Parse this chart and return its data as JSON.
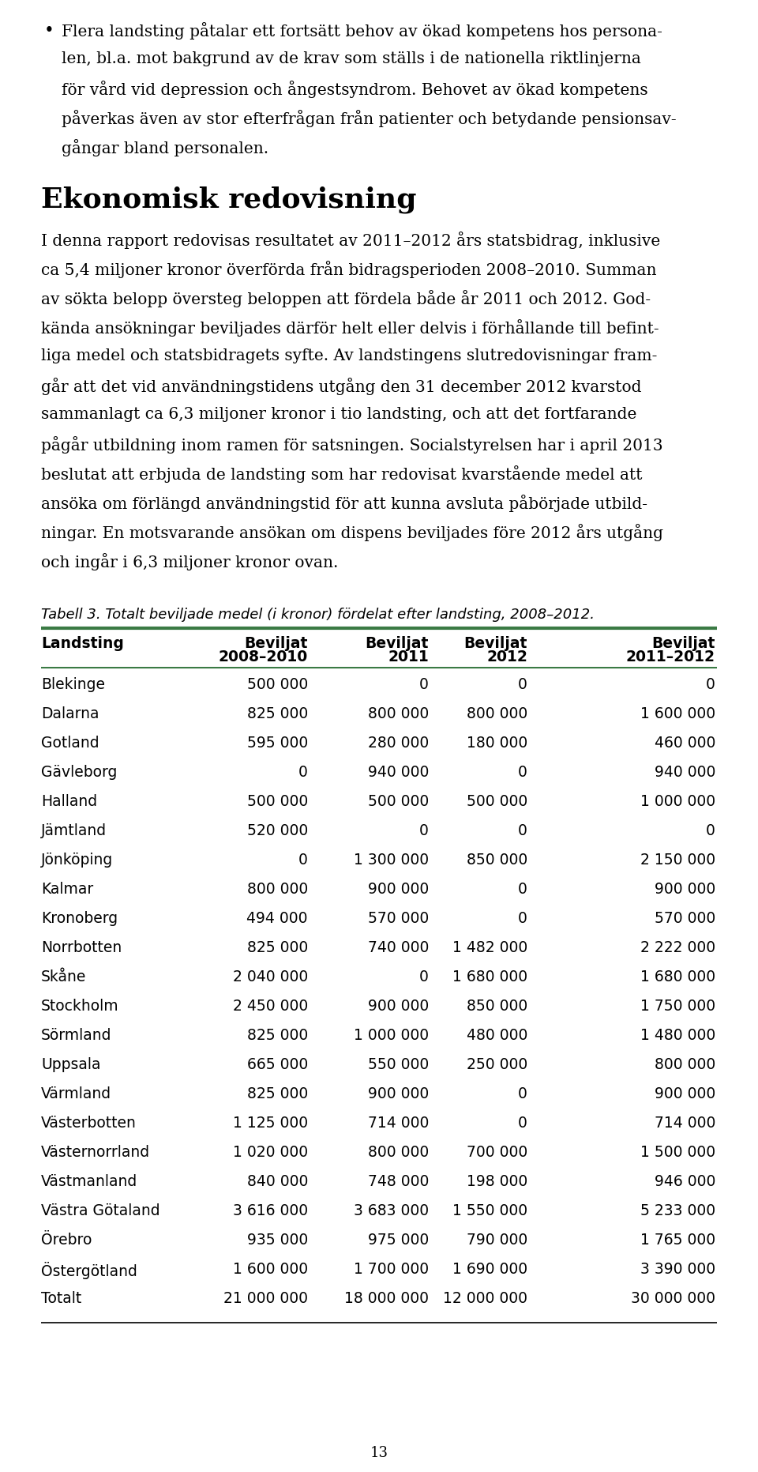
{
  "page_number": "13",
  "bullet_lines": [
    "Flera landsting påtalar ett fortsätt behov av ökad kompetens hos persona-",
    "len, bl.a. mot bakgrund av de krav som ställs i de nationella riktlinjerna",
    "för vård vid depression och ångestsyndrom. Behovet av ökad kompetens",
    "påverkas även av stor efterfrågan från patienter och betydande pensionsav-",
    "gångar bland personalen."
  ],
  "section_title": "Ekonomisk redovisning",
  "body_lines": [
    "I denna rapport redovisas resultatet av 2011–2012 års statsbidrag, inklusive",
    "ca 5,4 miljoner kronor överförda från bidragsperioden 2008–2010. Summan",
    "av sökta belopp översteg beloppen att fördela både år 2011 och 2012. God-",
    "kända ansökningar beviljades därför helt eller delvis i förhållande till befint-",
    "liga medel och statsbidragets syfte. Av landstingens slutredovisningar fram-",
    "går att det vid användningstidens utgång den 31 december 2012 kvarstod",
    "sammanlagt ca 6,3 miljoner kronor i tio landsting, och att det fortfarande",
    "pågår utbildning inom ramen för satsningen. Socialstyrelsen har i april 2013",
    "beslutat att erbjuda de landsting som har redovisat kvarstående medel att",
    "ansöka om förlängd användningstid för att kunna avsluta påbörjade utbild-",
    "ningar. En motsvarande ansökan om dispens beviljades före 2012 års utgång",
    "och ingår i 6,3 miljoner kronor ovan."
  ],
  "table_caption": "Tabell 3. Totalt beviljade medel (i kronor) fördelat efter landsting, 2008–2012.",
  "col_headers": [
    "Landsting",
    "Beviljat\n2008–2010",
    "Beviljat\n2011",
    "Beviljat\n2012",
    "Beviljat\n2011–2012"
  ],
  "rows": [
    [
      "Blekinge",
      "500 000",
      "0",
      "0",
      "0"
    ],
    [
      "Dalarna",
      "825 000",
      "800 000",
      "800 000",
      "1 600 000"
    ],
    [
      "Gotland",
      "595 000",
      "280 000",
      "180 000",
      "460 000"
    ],
    [
      "Gävleborg",
      "0",
      "940 000",
      "0",
      "940 000"
    ],
    [
      "Halland",
      "500 000",
      "500 000",
      "500 000",
      "1 000 000"
    ],
    [
      "Jämtland",
      "520 000",
      "0",
      "0",
      "0"
    ],
    [
      "Jönköping",
      "0",
      "1 300 000",
      "850 000",
      "2 150 000"
    ],
    [
      "Kalmar",
      "800 000",
      "900 000",
      "0",
      "900 000"
    ],
    [
      "Kronoberg",
      "494 000",
      "570 000",
      "0",
      "570 000"
    ],
    [
      "Norrbotten",
      "825 000",
      "740 000",
      "1 482 000",
      "2 222 000"
    ],
    [
      "Skåne",
      "2 040 000",
      "0",
      "1 680 000",
      "1 680 000"
    ],
    [
      "Stockholm",
      "2 450 000",
      "900 000",
      "850 000",
      "1 750 000"
    ],
    [
      "Sörmland",
      "825 000",
      "1 000 000",
      "480 000",
      "1 480 000"
    ],
    [
      "Uppsala",
      "665 000",
      "550 000",
      "250 000",
      "800 000"
    ],
    [
      "Värmland",
      "825 000",
      "900 000",
      "0",
      "900 000"
    ],
    [
      "Västerbotten",
      "1 125 000",
      "714 000",
      "0",
      "714 000"
    ],
    [
      "Västernorrland",
      "1 020 000",
      "800 000",
      "700 000",
      "1 500 000"
    ],
    [
      "Västmanland",
      "840 000",
      "748 000",
      "198 000",
      "946 000"
    ],
    [
      "Västra Götaland",
      "3 616 000",
      "3 683 000",
      "1 550 000",
      "5 233 000"
    ],
    [
      "Örebro",
      "935 000",
      "975 000",
      "790 000",
      "1 765 000"
    ],
    [
      "Östergötland",
      "1 600 000",
      "1 700 000",
      "1 690 000",
      "3 390 000"
    ],
    [
      "Totalt",
      "21 000 000",
      "18 000 000",
      "12 000 000",
      "30 000 000"
    ]
  ],
  "bg_color": "#ffffff",
  "text_color": "#000000",
  "green_color": "#3a7a44",
  "serif_font": "DejaVu Serif",
  "sans_font": "DejaVu Sans"
}
